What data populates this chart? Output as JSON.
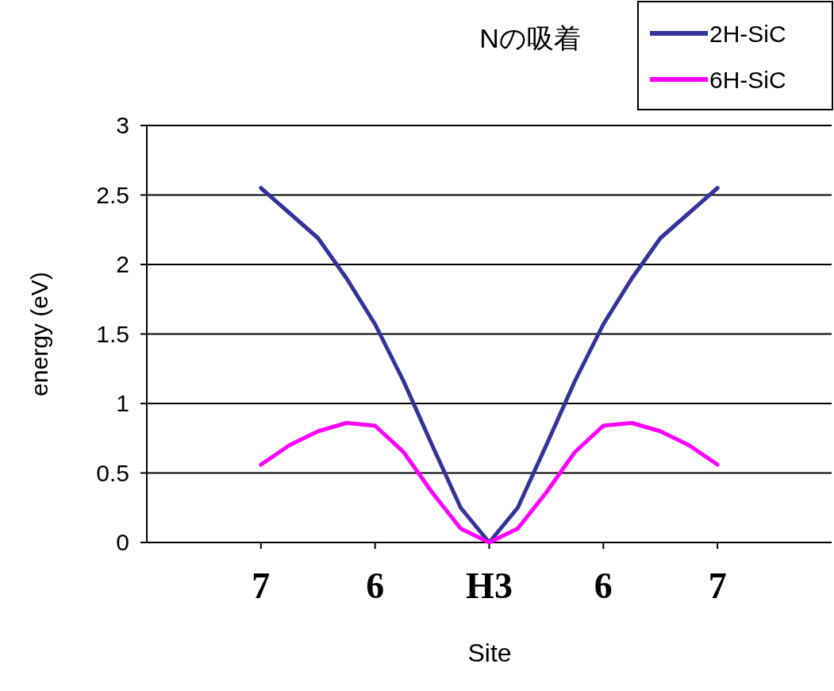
{
  "chart_data": {
    "type": "line",
    "title": "Nの吸着",
    "xlabel": "Site",
    "ylabel": "energy (eV)",
    "categories": [
      "7",
      null,
      null,
      null,
      "6",
      null,
      null,
      null,
      "H3",
      null,
      null,
      null,
      "6",
      null,
      null,
      null,
      "7"
    ],
    "ylim": [
      0,
      3
    ],
    "yticks": [
      0,
      0.5,
      1,
      1.5,
      2,
      2.5,
      3
    ],
    "grid": "y",
    "legend": "top right",
    "series": [
      {
        "name": "2H-SiC",
        "color": "#333399",
        "values": [
          2.55,
          2.37,
          2.19,
          1.9,
          1.57,
          1.16,
          0.7,
          0.25,
          0,
          0.25,
          0.7,
          1.16,
          1.57,
          1.9,
          2.19,
          2.37,
          2.55
        ]
      },
      {
        "name": "6H-SiC",
        "color": "#ff00ff",
        "values": [
          0.56,
          0.7,
          0.8,
          0.86,
          0.84,
          0.65,
          0.36,
          0.1,
          0,
          0.1,
          0.36,
          0.65,
          0.84,
          0.86,
          0.8,
          0.7,
          0.56
        ]
      }
    ]
  }
}
